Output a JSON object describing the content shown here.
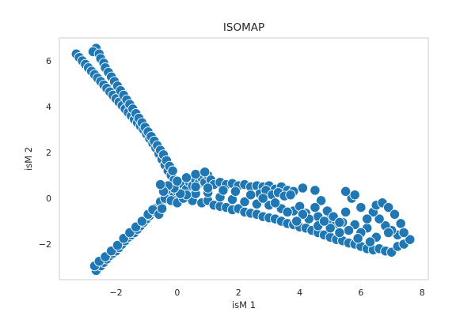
{
  "chart_data": {
    "type": "scatter",
    "title": "ISOMAP",
    "xlabel": "isM 1",
    "ylabel": "isM 2",
    "xlim": [
      -3.85,
      8.2
    ],
    "ylim": [
      -3.55,
      7.0
    ],
    "xticks": [
      -2,
      0,
      2,
      4,
      6,
      8
    ],
    "yticks": [
      -2,
      0,
      2,
      4,
      6
    ],
    "xtick_labels": [
      "−2",
      "0",
      "2",
      "4",
      "6",
      "8"
    ],
    "ytick_labels": [
      "−2",
      "0",
      "2",
      "4",
      "6"
    ],
    "grid": false,
    "marker_color": "#1f77b4",
    "marker_edge": "#ffffff",
    "series": [
      {
        "points": [
          [
            -3.3,
            6.3
          ],
          [
            -3.2,
            6.15
          ],
          [
            -3.1,
            6.0
          ],
          [
            -3.0,
            5.85
          ],
          [
            -2.9,
            5.7
          ],
          [
            -2.8,
            5.55
          ],
          [
            -2.7,
            5.4
          ],
          [
            -2.6,
            5.25
          ],
          [
            -2.5,
            5.1
          ],
          [
            -2.4,
            4.95
          ],
          [
            -2.3,
            4.8
          ],
          [
            -2.2,
            4.65
          ],
          [
            -2.1,
            4.5
          ],
          [
            -2.0,
            4.35
          ],
          [
            -1.9,
            4.2
          ],
          [
            -1.8,
            4.05
          ],
          [
            -1.7,
            3.9
          ],
          [
            -1.6,
            3.75
          ],
          [
            -1.5,
            3.6
          ],
          [
            -1.4,
            3.45
          ],
          [
            -1.3,
            3.3
          ],
          [
            -1.2,
            3.15
          ],
          [
            -1.1,
            3.0
          ],
          [
            -1.0,
            2.8
          ],
          [
            -0.9,
            2.6
          ],
          [
            -0.8,
            2.4
          ],
          [
            -0.7,
            2.2
          ],
          [
            -0.6,
            1.95
          ],
          [
            -0.5,
            1.7
          ],
          [
            -0.4,
            1.45
          ],
          [
            -0.3,
            1.2
          ],
          [
            -0.2,
            1.0
          ],
          [
            -0.1,
            0.8
          ],
          [
            -2.65,
            6.55
          ],
          [
            -2.75,
            6.4
          ],
          [
            -2.55,
            6.3
          ],
          [
            -2.5,
            6.1
          ],
          [
            -2.4,
            5.9
          ],
          [
            -2.35,
            5.7
          ],
          [
            -2.25,
            5.5
          ],
          [
            -2.15,
            5.3
          ],
          [
            -2.05,
            5.1
          ],
          [
            -1.95,
            4.9
          ],
          [
            -1.85,
            4.7
          ],
          [
            -1.75,
            4.5
          ],
          [
            -1.65,
            4.3
          ],
          [
            -1.55,
            4.1
          ],
          [
            -1.45,
            3.9
          ],
          [
            -1.35,
            3.7
          ],
          [
            -1.25,
            3.5
          ],
          [
            -1.15,
            3.3
          ],
          [
            -1.05,
            3.1
          ],
          [
            -0.95,
            2.9
          ],
          [
            -0.85,
            2.7
          ],
          [
            -0.75,
            2.5
          ],
          [
            -0.65,
            2.3
          ],
          [
            -0.55,
            2.1
          ],
          [
            -0.45,
            1.9
          ],
          [
            -0.35,
            1.65
          ],
          [
            -0.25,
            1.4
          ],
          [
            -0.15,
            1.2
          ],
          [
            -2.6,
            -3.05
          ],
          [
            -2.65,
            -3.15
          ],
          [
            -2.5,
            -2.95
          ],
          [
            -2.4,
            -2.8
          ],
          [
            -2.3,
            -2.65
          ],
          [
            -2.2,
            -2.5
          ],
          [
            -2.1,
            -2.4
          ],
          [
            -2.0,
            -2.3
          ],
          [
            -1.9,
            -2.15
          ],
          [
            -1.8,
            -2.0
          ],
          [
            -1.7,
            -1.85
          ],
          [
            -1.6,
            -1.7
          ],
          [
            -1.5,
            -1.6
          ],
          [
            -1.4,
            -1.5
          ],
          [
            -1.3,
            -1.35
          ],
          [
            -1.2,
            -1.2
          ],
          [
            -1.1,
            -1.05
          ],
          [
            -1.0,
            -0.9
          ],
          [
            -0.9,
            -0.75
          ],
          [
            -0.8,
            -0.6
          ],
          [
            -0.7,
            -0.5
          ],
          [
            -0.6,
            -0.35
          ],
          [
            -0.5,
            -0.2
          ],
          [
            -0.4,
            -0.05
          ],
          [
            -2.7,
            -2.95
          ],
          [
            -2.55,
            -2.75
          ],
          [
            -2.35,
            -2.55
          ],
          [
            -2.15,
            -2.3
          ],
          [
            -1.95,
            -2.05
          ],
          [
            -1.75,
            -1.75
          ],
          [
            -1.55,
            -1.5
          ],
          [
            -1.35,
            -1.25
          ],
          [
            -1.15,
            -1.0
          ],
          [
            -0.95,
            -0.7
          ],
          [
            -0.75,
            -0.45
          ],
          [
            -0.55,
            -0.15
          ],
          [
            -0.7,
            -0.6
          ],
          [
            -0.8,
            -0.5
          ],
          [
            -0.3,
            0.2
          ],
          [
            -0.2,
            0.35
          ],
          [
            -0.1,
            0.1
          ],
          [
            0.0,
            0.3
          ],
          [
            0.1,
            0.5
          ],
          [
            0.2,
            0.6
          ],
          [
            0.3,
            0.4
          ],
          [
            0.4,
            0.7
          ],
          [
            0.5,
            0.55
          ],
          [
            0.6,
            0.8
          ],
          [
            0.7,
            0.65
          ],
          [
            0.8,
            0.9
          ],
          [
            0.9,
            0.7
          ],
          [
            1.0,
            1.0
          ],
          [
            1.1,
            0.8
          ],
          [
            1.2,
            0.6
          ],
          [
            1.4,
            0.7
          ],
          [
            1.6,
            0.6
          ],
          [
            1.8,
            0.65
          ],
          [
            2.0,
            0.55
          ],
          [
            2.2,
            0.6
          ],
          [
            2.4,
            0.5
          ],
          [
            2.6,
            0.55
          ],
          [
            2.8,
            0.5
          ],
          [
            3.0,
            0.55
          ],
          [
            3.2,
            0.4
          ],
          [
            3.4,
            0.5
          ],
          [
            3.6,
            0.35
          ],
          [
            3.8,
            0.3
          ],
          [
            2.7,
            0.2
          ],
          [
            2.9,
            0.35
          ],
          [
            3.1,
            0.15
          ],
          [
            3.3,
            0.25
          ],
          [
            3.5,
            0.1
          ],
          [
            3.7,
            0.15
          ],
          [
            -0.6,
            -0.7
          ],
          [
            -0.5,
            -0.45
          ],
          [
            -0.4,
            0.0
          ],
          [
            -0.2,
            -0.1
          ],
          [
            0.0,
            -0.2
          ],
          [
            0.2,
            0.0
          ],
          [
            0.5,
            -0.1
          ],
          [
            0.8,
            -0.2
          ],
          [
            1.0,
            -0.1
          ],
          [
            1.2,
            -0.3
          ],
          [
            1.4,
            -0.35
          ],
          [
            1.6,
            -0.4
          ],
          [
            1.8,
            -0.5
          ],
          [
            2.0,
            -0.45
          ],
          [
            2.2,
            -0.6
          ],
          [
            2.4,
            -0.65
          ],
          [
            2.6,
            -0.7
          ],
          [
            2.8,
            -0.8
          ],
          [
            3.0,
            -0.85
          ],
          [
            3.2,
            -0.9
          ],
          [
            3.4,
            -1.0
          ],
          [
            3.6,
            -1.1
          ],
          [
            3.8,
            -1.15
          ],
          [
            4.0,
            -1.25
          ],
          [
            4.2,
            -1.3
          ],
          [
            4.4,
            -1.4
          ],
          [
            4.6,
            -1.5
          ],
          [
            4.8,
            -1.6
          ],
          [
            5.0,
            -1.7
          ],
          [
            5.2,
            -1.8
          ],
          [
            5.4,
            -1.85
          ],
          [
            5.6,
            -1.95
          ],
          [
            5.8,
            -2.0
          ],
          [
            6.0,
            -2.1
          ],
          [
            6.2,
            -2.2
          ],
          [
            6.4,
            -2.25
          ],
          [
            6.6,
            -2.2
          ],
          [
            6.8,
            -2.3
          ],
          [
            7.0,
            -2.35
          ],
          [
            7.2,
            -2.1
          ],
          [
            7.4,
            -2.0
          ],
          [
            7.6,
            -1.8
          ],
          [
            7.2,
            -1.6
          ],
          [
            7.0,
            -1.4
          ],
          [
            6.8,
            -1.2
          ],
          [
            6.6,
            -0.9
          ],
          [
            6.4,
            -0.6
          ],
          [
            6.5,
            -0.3
          ],
          [
            6.7,
            -0.2
          ],
          [
            6.9,
            -0.4
          ],
          [
            7.1,
            -0.7
          ],
          [
            7.3,
            -1.1
          ],
          [
            7.4,
            -1.5
          ],
          [
            0.6,
            0.2
          ],
          [
            1.0,
            0.25
          ],
          [
            1.4,
            0.05
          ],
          [
            1.8,
            -0.05
          ],
          [
            2.2,
            -0.15
          ],
          [
            2.6,
            -0.25
          ],
          [
            3.0,
            -0.3
          ],
          [
            3.4,
            -0.45
          ],
          [
            3.8,
            -0.55
          ],
          [
            4.2,
            -0.65
          ],
          [
            4.6,
            -0.8
          ],
          [
            5.0,
            -0.9
          ],
          [
            5.4,
            -1.05
          ],
          [
            5.8,
            -1.15
          ],
          [
            6.2,
            -1.3
          ],
          [
            4.1,
            0.45
          ],
          [
            4.5,
            0.35
          ],
          [
            4.7,
            -0.1
          ],
          [
            4.5,
            -0.4
          ],
          [
            4.3,
            -0.9
          ],
          [
            4.6,
            -1.2
          ],
          [
            5.2,
            -1.1
          ],
          [
            5.5,
            -0.6
          ],
          [
            5.7,
            0.0
          ],
          [
            5.5,
            0.3
          ],
          [
            5.8,
            0.15
          ],
          [
            6.0,
            -0.4
          ],
          [
            6.2,
            -0.9
          ],
          [
            6.0,
            -1.5
          ],
          [
            5.6,
            -1.4
          ],
          [
            5.3,
            -1.5
          ],
          [
            5.0,
            -1.3
          ],
          [
            4.8,
            -1.0
          ],
          [
            4.9,
            -0.55
          ],
          [
            5.1,
            -0.8
          ],
          [
            5.3,
            -1.05
          ],
          [
            6.5,
            -1.7
          ],
          [
            6.9,
            -1.5
          ],
          [
            6.3,
            -1.9
          ],
          [
            5.9,
            -1.75
          ],
          [
            4.0,
            -0.35
          ],
          [
            4.1,
            -0.7
          ],
          [
            3.9,
            -1.0
          ],
          [
            3.6,
            -0.6
          ],
          [
            3.2,
            -0.2
          ],
          [
            2.8,
            0.0
          ],
          [
            2.4,
            0.15
          ],
          [
            1.9,
            0.3
          ],
          [
            1.5,
            0.35
          ],
          [
            1.0,
            0.45
          ],
          [
            0.6,
            0.5
          ],
          [
            0.3,
            0.15
          ],
          [
            0.1,
            0.2
          ],
          [
            -0.1,
            0.45
          ],
          [
            -0.3,
            0.55
          ],
          [
            -0.45,
            0.3
          ],
          [
            -0.55,
            0.6
          ],
          [
            0.0,
            0.75
          ],
          [
            0.3,
            0.9
          ],
          [
            0.6,
            1.05
          ],
          [
            0.9,
            1.15
          ]
        ]
      }
    ]
  }
}
